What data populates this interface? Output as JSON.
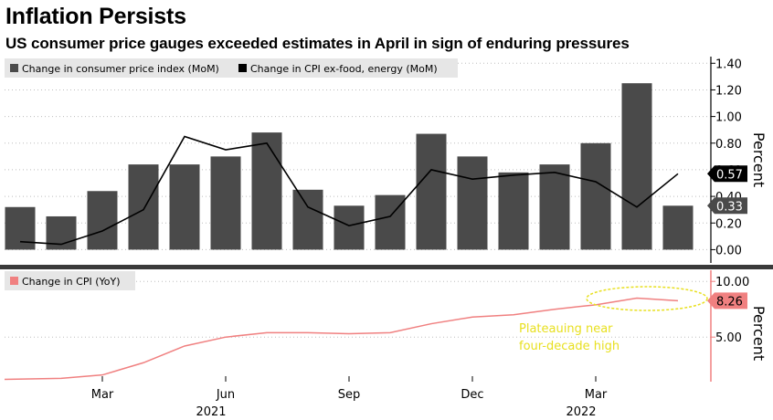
{
  "title": "Inflation Persists",
  "subtitle": "US consumer price gauges exceeded estimates in April in sign of enduring pressures",
  "colors": {
    "bar": "#4a4a4a",
    "core_line": "#000000",
    "yoy_line": "#f08080",
    "axis_red": "#f08080",
    "annotation": "#e8e020",
    "legend_bg": "#e6e6e6",
    "tag_dark": "#000000",
    "tag_gray": "#4a4a4a",
    "tag_red": "#f08080"
  },
  "chart_data": [
    {
      "type": "bar",
      "panel": "top",
      "legend": [
        "Change in consumer price index (MoM)",
        "Change in CPI ex-food, energy (MoM)"
      ],
      "ylabel": "Percent",
      "ylim": [
        -0.1,
        1.45
      ],
      "yticks": [
        "1.40",
        "1.20",
        "1.00",
        "0.80",
        "0.60",
        "0.40",
        "0.20",
        "0.00"
      ],
      "ytick_values": [
        1.4,
        1.2,
        1.0,
        0.8,
        0.6,
        0.4,
        0.2,
        0.0
      ],
      "categories": [
        "2021-01",
        "2021-02",
        "2021-03",
        "2021-04",
        "2021-05",
        "2021-06",
        "2021-07",
        "2021-08",
        "2021-09",
        "2021-10",
        "2021-11",
        "2021-12",
        "2022-01",
        "2022-02",
        "2022-03",
        "2022-04",
        "2022-05"
      ],
      "series": [
        {
          "name": "Change in consumer price index (MoM)",
          "type": "bar",
          "values": [
            0.32,
            0.25,
            0.44,
            0.64,
            0.64,
            0.7,
            0.88,
            0.45,
            0.33,
            0.41,
            0.87,
            0.7,
            0.58,
            0.64,
            0.8,
            1.25,
            0.33
          ]
        },
        {
          "name": "Change in CPI ex-food, energy (MoM)",
          "type": "line",
          "values": [
            0.06,
            0.04,
            0.14,
            0.3,
            0.85,
            0.75,
            0.8,
            0.32,
            0.18,
            0.25,
            0.6,
            0.53,
            0.56,
            0.58,
            0.51,
            0.32,
            0.57
          ]
        }
      ],
      "last_value_tags": [
        "0.57",
        "0.33"
      ]
    },
    {
      "type": "line",
      "panel": "bottom",
      "legend": [
        "Change in CPI (YoY)"
      ],
      "ylabel": "Percent",
      "ylim": [
        1.0,
        11.0
      ],
      "yticks": [
        "10.00",
        "5.00"
      ],
      "ytick_values": [
        10.0,
        5.0
      ],
      "series": [
        {
          "name": "Change in CPI (YoY)",
          "values": [
            1.2,
            1.3,
            1.6,
            2.7,
            4.2,
            5.0,
            5.4,
            5.4,
            5.3,
            5.4,
            6.2,
            6.8,
            7.0,
            7.5,
            7.9,
            8.5,
            8.26
          ]
        }
      ],
      "last_value_tag": "8.26",
      "annotation": [
        "Plateauing near",
        "four-decade high"
      ]
    }
  ],
  "x_axis": {
    "tick_labels": [
      "Mar",
      "Jun",
      "Sep",
      "Dec",
      "Mar"
    ],
    "tick_months": [
      2,
      5,
      8,
      11,
      14
    ],
    "year_labels": [
      "2021",
      "2022"
    ],
    "year_months": [
      5,
      14
    ]
  }
}
